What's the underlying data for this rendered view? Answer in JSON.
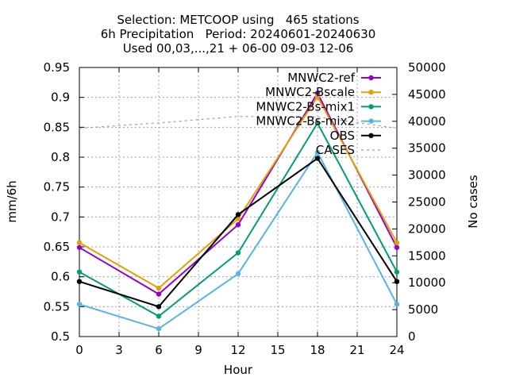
{
  "chart_data": {
    "type": "line",
    "title_lines": [
      "Selection: METCOOP using   465 stations",
      "6h Precipitation   Period: 20240601-20240630",
      "Used 00,03,...,21 + 06-00 09-03 12-06"
    ],
    "xlabel": "Hour",
    "ylabel": "mm/6h",
    "y2label": "No cases",
    "xlim": [
      0,
      24
    ],
    "ylim": [
      0.5,
      0.95
    ],
    "y2lim": [
      0,
      50000
    ],
    "xticks": [
      "0",
      "3",
      "6",
      "9",
      "12",
      "15",
      "18",
      "21",
      "24"
    ],
    "yticks": [
      "0.5",
      "0.55",
      "0.6",
      "0.65",
      "0.7",
      "0.75",
      "0.8",
      "0.85",
      "0.9",
      "0.95"
    ],
    "y2ticks": [
      "0",
      "5000",
      "10000",
      "15000",
      "20000",
      "25000",
      "30000",
      "35000",
      "40000",
      "45000",
      "50000"
    ],
    "grid": true,
    "legend_position": "top-right",
    "x": [
      0,
      6,
      12,
      18,
      24
    ],
    "series": [
      {
        "name": "MNWC2-ref",
        "color": "#9400d3",
        "axis": "y",
        "values": [
          0.649,
          0.571,
          0.687,
          0.907,
          0.649
        ]
      },
      {
        "name": "MNWC2-Bscale",
        "color": "#e69f00",
        "axis": "y",
        "values": [
          0.657,
          0.581,
          0.697,
          0.901,
          0.657
        ]
      },
      {
        "name": "MNWC2-Bs-mix1",
        "color": "#009e73",
        "axis": "y",
        "values": [
          0.608,
          0.534,
          0.64,
          0.857,
          0.608
        ]
      },
      {
        "name": "MNWC2-Bs-mix2",
        "color": "#56b4e9",
        "axis": "y",
        "values": [
          0.554,
          0.513,
          0.605,
          0.808,
          0.554
        ]
      },
      {
        "name": "OBS",
        "color": "#000000",
        "axis": "y",
        "values": [
          0.592,
          0.55,
          0.704,
          0.798,
          0.592
        ]
      },
      {
        "name": "CASES",
        "color": "#a0a0a0",
        "axis": "y2",
        "dashed": true,
        "values": [
          38700,
          39700,
          40900,
          40800,
          38700
        ]
      }
    ]
  }
}
